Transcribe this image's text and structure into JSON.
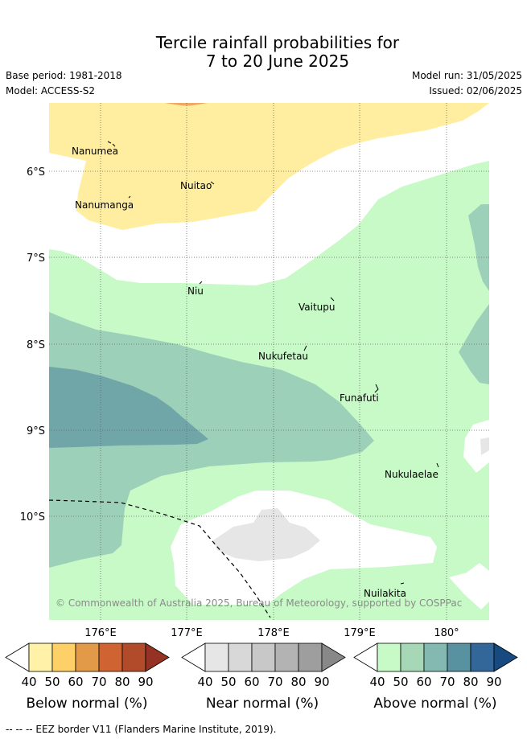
{
  "header": {
    "title_line1": "Tercile rainfall probabilities for",
    "title_line2": "7 to 20 June 2025",
    "base_period": "Base period: 1981-2018",
    "model": "Model: ACCESS-S2",
    "model_run": "Model run: 31/05/2025",
    "issued": "Issued: 02/06/2025"
  },
  "map": {
    "lat_ticks": [
      "6°S",
      "7°S",
      "8°S",
      "9°S",
      "10°S"
    ],
    "lon_ticks": [
      "176°E",
      "177°E",
      "178°E",
      "179°E",
      "180°"
    ],
    "places": [
      "Nanumea",
      "Nuitao",
      "Nanumanga",
      "Niu",
      "Vaitupu",
      "Nukufetau",
      "Funafuti",
      "Nukulaelae",
      "Nuilakita"
    ],
    "copyright": "© Commonwealth of Australia 2025, Bureau of Meteorology, supported by COSPPac",
    "colors": {
      "below_40_50": "#ffeea0",
      "near_40_50": "#e6e6e6",
      "above_40_50": "#c8fac8",
      "above_50_60": "#9dd0b8",
      "above_60_70": "#70a6a8",
      "eez_border": "#000000"
    }
  },
  "colorbars": [
    {
      "title": "Below normal (%)",
      "labels": [
        "40",
        "50",
        "60",
        "70",
        "80",
        "90"
      ],
      "colors": [
        "#ffffff",
        "#fff2a8",
        "#fdd068",
        "#e39a48",
        "#cf6331",
        "#b14b2a",
        "#963223"
      ]
    },
    {
      "title": "Near normal (%)",
      "labels": [
        "40",
        "50",
        "60",
        "70",
        "80",
        "90"
      ],
      "colors": [
        "#ffffff",
        "#e6e6e6",
        "#d8d8d8",
        "#c8c8c8",
        "#b3b3b3",
        "#9e9e9e",
        "#888888"
      ]
    },
    {
      "title": "Above normal (%)",
      "labels": [
        "40",
        "50",
        "60",
        "70",
        "80",
        "90"
      ],
      "colors": [
        "#ffffff",
        "#c8fac8",
        "#a6d8b8",
        "#83b9b0",
        "#5891a0",
        "#336699",
        "#174a80"
      ]
    }
  ],
  "footer": "--  --  -- EEZ border V11 (Flanders Marine Institute, 2019)."
}
